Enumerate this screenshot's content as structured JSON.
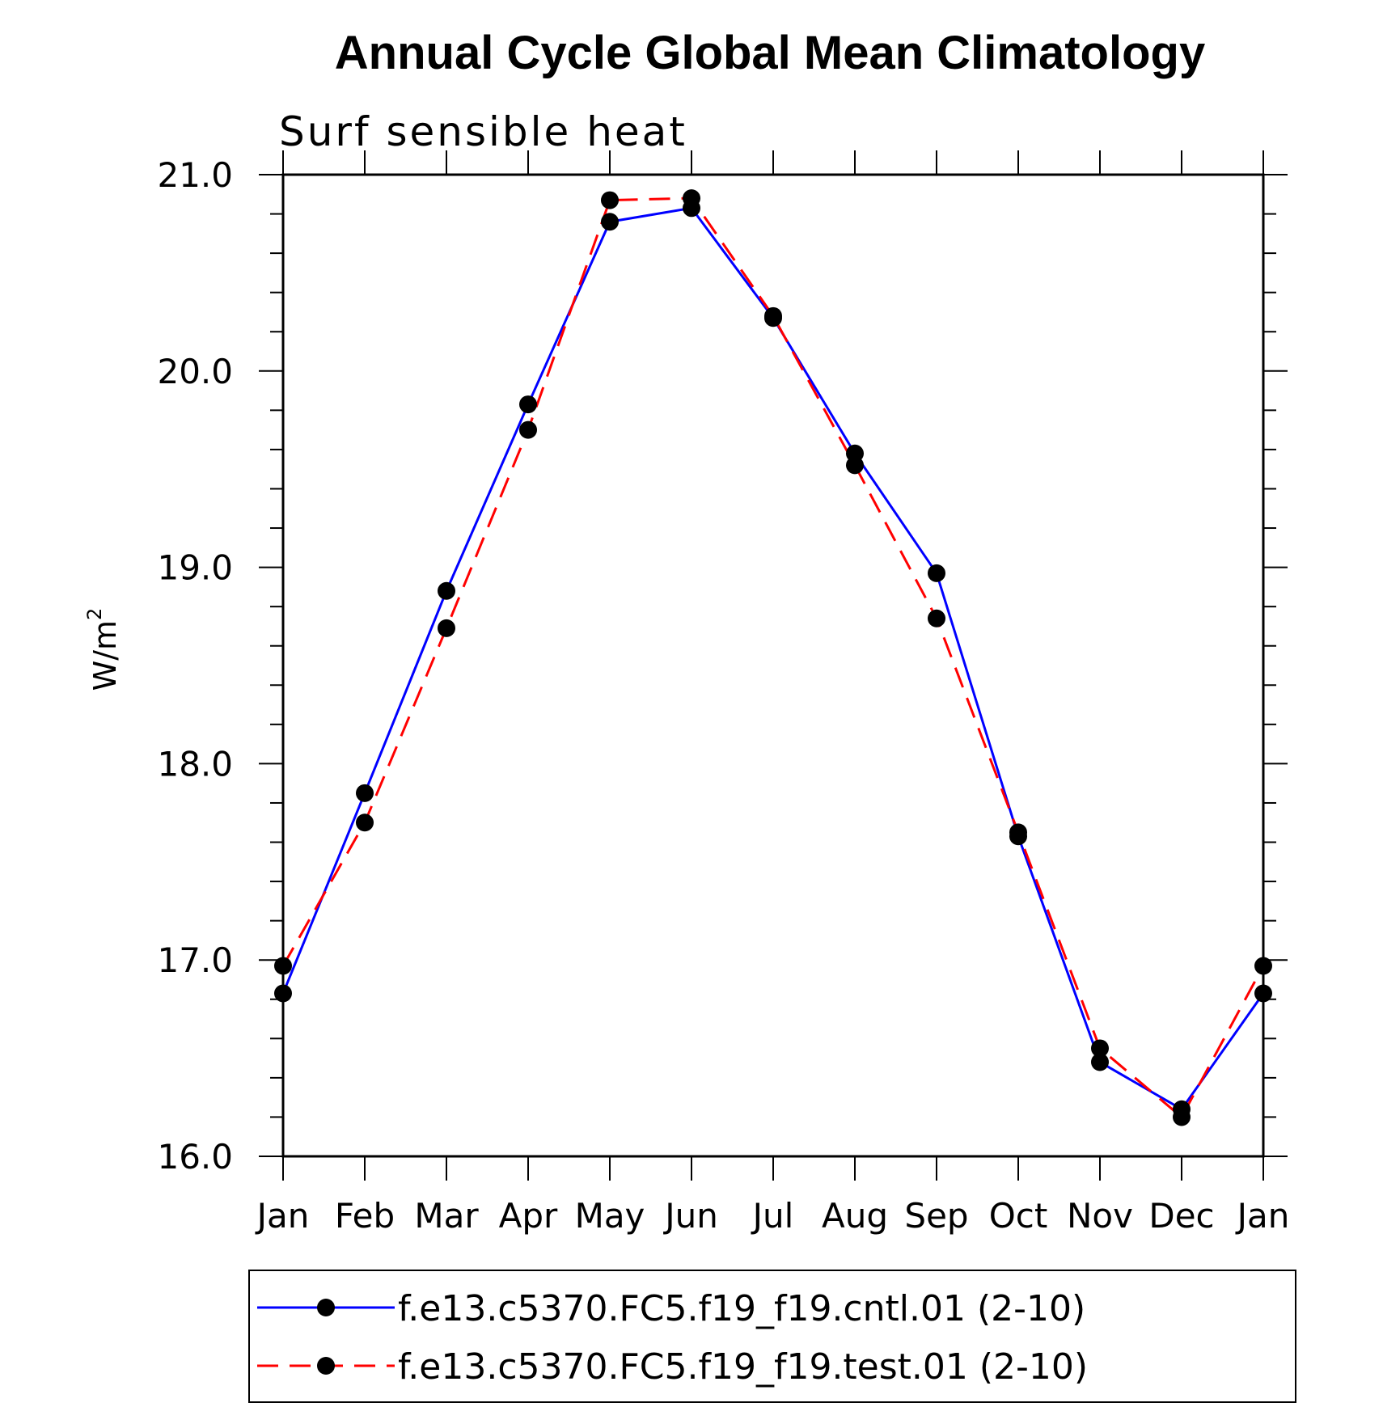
{
  "chart_data": {
    "type": "line",
    "title": "Annual Cycle Global Mean Climatology",
    "subtitle": "Surf sensible heat",
    "ylabel": "W/m",
    "ylabel_sup": "2",
    "categories": [
      "Jan",
      "Feb",
      "Mar",
      "Apr",
      "May",
      "Jun",
      "Jul",
      "Aug",
      "Sep",
      "Oct",
      "Nov",
      "Dec",
      "Jan"
    ],
    "ylim": [
      16.0,
      21.0
    ],
    "yticks": [
      "16.0",
      "17.0",
      "18.0",
      "19.0",
      "20.0",
      "21.0"
    ],
    "series": [
      {
        "name": "f.e13.c5370.FC5.f19_f19.cntl.01 (2-10)",
        "color": "#0000ff",
        "dash": "solid",
        "values": [
          16.83,
          17.85,
          18.88,
          19.83,
          20.76,
          20.83,
          20.27,
          19.58,
          18.97,
          17.63,
          16.48,
          16.24,
          16.83
        ]
      },
      {
        "name": "f.e13.c5370.FC5.f19_f19.test.01 (2-10)",
        "color": "#ff0000",
        "dash": "dashed",
        "values": [
          16.97,
          17.7,
          18.69,
          19.7,
          20.87,
          20.88,
          20.28,
          19.52,
          18.74,
          17.65,
          16.55,
          16.2,
          16.97
        ]
      }
    ]
  }
}
